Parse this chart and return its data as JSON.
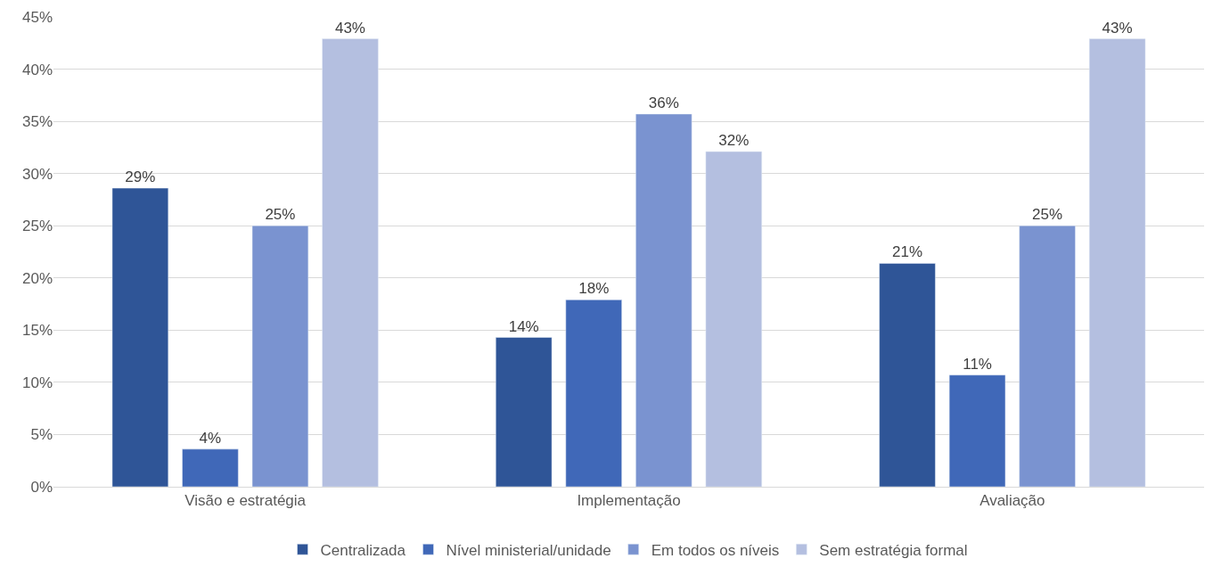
{
  "chart_data": {
    "type": "bar",
    "categories": [
      "Visão e estratégia",
      "Implementação",
      "Avaliação"
    ],
    "series": [
      {
        "name": "Centralizada",
        "color": "#2f5597",
        "values": [
          28.6,
          14.3,
          21.4
        ],
        "value_labels": [
          "29%",
          "14%",
          "21%"
        ]
      },
      {
        "name": "Nível ministerial/unidade",
        "color": "#4068b8",
        "values": [
          3.6,
          17.9,
          10.7
        ],
        "value_labels": [
          "4%",
          "18%",
          "11%"
        ]
      },
      {
        "name": "Em todos os níveis",
        "color": "#7a93d0",
        "values": [
          25,
          35.7,
          25
        ],
        "value_labels": [
          "25%",
          "36%",
          "25%"
        ]
      },
      {
        "name": "Sem estratégia formal",
        "color": "#b4bfe0",
        "values": [
          42.9,
          32.1,
          42.9
        ],
        "value_labels": [
          "43%",
          "32%",
          "43%"
        ]
      }
    ],
    "ylim": [
      0,
      45
    ],
    "yticks": [
      {
        "value": 0,
        "label": "0%"
      },
      {
        "value": 5,
        "label": "5%"
      },
      {
        "value": 10,
        "label": "10%"
      },
      {
        "value": 15,
        "label": "15%"
      },
      {
        "value": 20,
        "label": "20%"
      },
      {
        "value": 25,
        "label": "25%"
      },
      {
        "value": 30,
        "label": "30%"
      },
      {
        "value": 35,
        "label": "35%"
      },
      {
        "value": 40,
        "label": "40%"
      },
      {
        "value": 45,
        "label": "45%"
      }
    ],
    "grid": "y",
    "legend": "bottom"
  }
}
